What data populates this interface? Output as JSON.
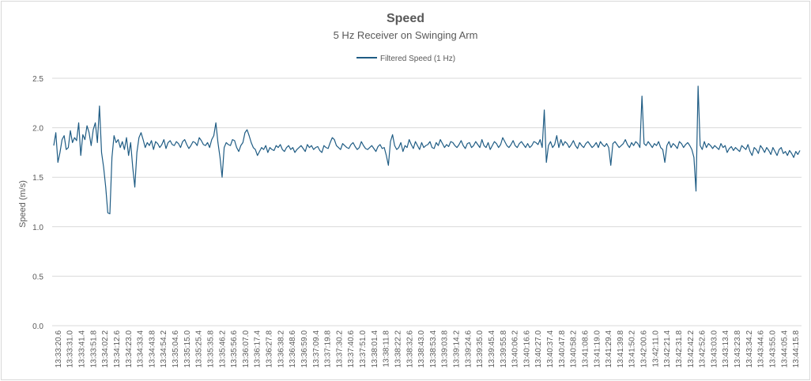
{
  "chart_data": {
    "type": "line",
    "title": "Speed",
    "subtitle": "5 Hz Receiver on Swinging Arm",
    "ylabel": "Speed (m/s)",
    "xlabel": "",
    "ylim": [
      0,
      2.5
    ],
    "yticks": [
      "0.0",
      "0.5",
      "1.0",
      "1.5",
      "2.0",
      "2.5"
    ],
    "grid": true,
    "legend_position": "top-center",
    "colors": {
      "series": "#1f5c84",
      "grid": "#d9d9d9",
      "text": "#595959",
      "border": "#d9d9d9"
    },
    "x_tick_labels": [
      "13:33:20.6",
      "13:33:31.0",
      "13:33:41.4",
      "13:33:51.8",
      "13:34:02.2",
      "13:34:12.6",
      "13:34:23.0",
      "13:34:33.4",
      "13:34:43.8",
      "13:34:54.2",
      "13:35:04.6",
      "13:35:15.0",
      "13:35:25.4",
      "13:35:35.8",
      "13:35:46.2",
      "13:35:56.6",
      "13:36:07.0",
      "13:36:17.4",
      "13:36:27.8",
      "13:36:38.2",
      "13:36:48.6",
      "13:36:59.0",
      "13:37:09.4",
      "13:37:19.8",
      "13:37:30.2",
      "13:37:40.6",
      "13:37:51.0",
      "13:38:01.4",
      "13:38:11.8",
      "13:38:22.2",
      "13:38:32.6",
      "13:38:43.0",
      "13:38:53.4",
      "13:39:03.8",
      "13:39:14.2",
      "13:39:24.6",
      "13:39:35.0",
      "13:39:45.4",
      "13:39:55.8",
      "13:40:06.2",
      "13:40:16.6",
      "13:40:27.0",
      "13:40:37.4",
      "13:40:47.8",
      "13:40:58.2",
      "13:41:08.6",
      "13:41:19.0",
      "13:41:29.4",
      "13:41:39.8",
      "13:41:50.2",
      "13:42:00.6",
      "13:42:11.0",
      "13:42:21.4",
      "13:42:31.8",
      "13:42:42.2",
      "13:42:52.6",
      "13:43:03.0",
      "13:43:13.4",
      "13:43:23.8",
      "13:43:34.2",
      "13:43:44.6",
      "13:43:55.0",
      "13:44:05.4",
      "13:44:15.8"
    ],
    "series": [
      {
        "name": "Filtered Speed (1 Hz)",
        "values": [
          1.82,
          1.95,
          1.65,
          1.75,
          1.88,
          1.92,
          1.78,
          1.8,
          1.97,
          1.85,
          1.9,
          1.87,
          2.05,
          1.72,
          1.93,
          1.88,
          2.02,
          1.95,
          1.82,
          1.98,
          2.05,
          1.85,
          2.22,
          1.75,
          1.6,
          1.4,
          1.14,
          1.13,
          1.7,
          1.92,
          1.85,
          1.88,
          1.8,
          1.86,
          1.78,
          1.9,
          1.72,
          1.85,
          1.6,
          1.4,
          1.75,
          1.9,
          1.95,
          1.88,
          1.8,
          1.85,
          1.82,
          1.87,
          1.78,
          1.86,
          1.84,
          1.8,
          1.83,
          1.88,
          1.79,
          1.85,
          1.87,
          1.83,
          1.82,
          1.86,
          1.84,
          1.8,
          1.86,
          1.88,
          1.83,
          1.79,
          1.82,
          1.86,
          1.85,
          1.82,
          1.9,
          1.87,
          1.83,
          1.82,
          1.85,
          1.8,
          1.88,
          1.92,
          2.05,
          1.85,
          1.7,
          1.5,
          1.8,
          1.85,
          1.83,
          1.82,
          1.88,
          1.87,
          1.8,
          1.76,
          1.82,
          1.85,
          1.95,
          1.98,
          1.92,
          1.85,
          1.8,
          1.78,
          1.72,
          1.76,
          1.8,
          1.78,
          1.82,
          1.75,
          1.8,
          1.78,
          1.77,
          1.82,
          1.8,
          1.83,
          1.78,
          1.76,
          1.8,
          1.82,
          1.78,
          1.8,
          1.75,
          1.78,
          1.8,
          1.82,
          1.79,
          1.76,
          1.83,
          1.8,
          1.82,
          1.78,
          1.8,
          1.81,
          1.77,
          1.75,
          1.82,
          1.8,
          1.79,
          1.85,
          1.9,
          1.88,
          1.82,
          1.8,
          1.78,
          1.84,
          1.82,
          1.8,
          1.79,
          1.83,
          1.85,
          1.81,
          1.78,
          1.8,
          1.86,
          1.82,
          1.79,
          1.78,
          1.8,
          1.82,
          1.79,
          1.76,
          1.81,
          1.83,
          1.79,
          1.8,
          1.72,
          1.62,
          1.86,
          1.93,
          1.82,
          1.78,
          1.8,
          1.85,
          1.76,
          1.82,
          1.8,
          1.88,
          1.83,
          1.79,
          1.86,
          1.82,
          1.78,
          1.85,
          1.8,
          1.82,
          1.83,
          1.86,
          1.8,
          1.79,
          1.85,
          1.82,
          1.88,
          1.84,
          1.8,
          1.83,
          1.81,
          1.86,
          1.85,
          1.82,
          1.8,
          1.83,
          1.87,
          1.82,
          1.79,
          1.84,
          1.85,
          1.8,
          1.82,
          1.86,
          1.83,
          1.8,
          1.88,
          1.82,
          1.8,
          1.85,
          1.78,
          1.82,
          1.86,
          1.84,
          1.8,
          1.83,
          1.9,
          1.86,
          1.82,
          1.8,
          1.83,
          1.87,
          1.82,
          1.8,
          1.84,
          1.86,
          1.83,
          1.8,
          1.84,
          1.8,
          1.82,
          1.86,
          1.85,
          1.83,
          1.88,
          1.8,
          2.18,
          1.65,
          1.82,
          1.86,
          1.8,
          1.83,
          1.92,
          1.8,
          1.88,
          1.82,
          1.86,
          1.84,
          1.8,
          1.83,
          1.87,
          1.82,
          1.79,
          1.85,
          1.82,
          1.8,
          1.84,
          1.86,
          1.83,
          1.8,
          1.82,
          1.85,
          1.8,
          1.86,
          1.83,
          1.81,
          1.84,
          1.8,
          1.62,
          1.84,
          1.86,
          1.83,
          1.8,
          1.82,
          1.84,
          1.88,
          1.83,
          1.8,
          1.85,
          1.82,
          1.86,
          1.84,
          1.8,
          2.32,
          1.84,
          1.82,
          1.86,
          1.83,
          1.8,
          1.84,
          1.82,
          1.86,
          1.8,
          1.78,
          1.65,
          1.82,
          1.86,
          1.8,
          1.84,
          1.82,
          1.79,
          1.86,
          1.84,
          1.8,
          1.83,
          1.85,
          1.82,
          1.78,
          1.7,
          1.36,
          2.42,
          1.82,
          1.78,
          1.86,
          1.8,
          1.84,
          1.82,
          1.79,
          1.82,
          1.8,
          1.78,
          1.84,
          1.8,
          1.82,
          1.75,
          1.79,
          1.81,
          1.77,
          1.8,
          1.78,
          1.76,
          1.82,
          1.8,
          1.78,
          1.83,
          1.76,
          1.72,
          1.8,
          1.78,
          1.74,
          1.82,
          1.79,
          1.75,
          1.8,
          1.77,
          1.73,
          1.8,
          1.76,
          1.72,
          1.78,
          1.8,
          1.74,
          1.76,
          1.72,
          1.77,
          1.74,
          1.7,
          1.76,
          1.73,
          1.77
        ]
      }
    ]
  }
}
